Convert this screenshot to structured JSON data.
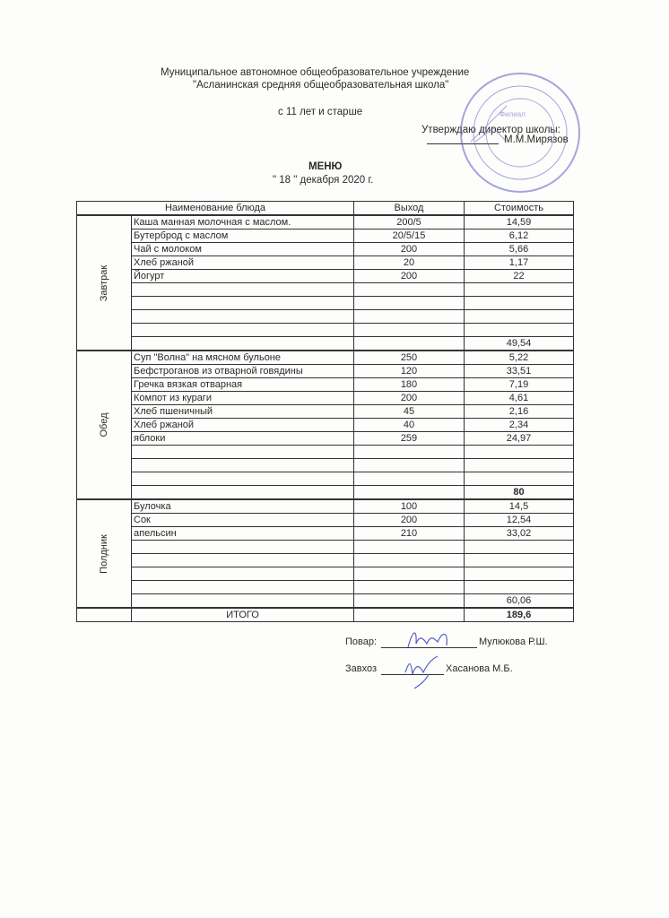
{
  "header": {
    "org_line1": "Муниципальное автономное общеобразовательное учреждение",
    "org_line2": "\"Асланинская средняя общеобразовательная школа\"",
    "age_group": "с 11 лет и старше",
    "approve_label": "Утверждаю директор школы:",
    "director": "М.М.Мирязов",
    "title": "МЕНЮ",
    "date": "\" 18 \" декабря 2020 г."
  },
  "stamp": {
    "text": "Филиал",
    "color": "#5a5fc0"
  },
  "table": {
    "columns": [
      "Наименование блюда",
      "Выход",
      "Стоимость"
    ],
    "sections": [
      {
        "name": "Завтрак",
        "rows": [
          [
            "Каша манная молочная с маслом.",
            "200/5",
            "14,59"
          ],
          [
            "Бутерброд с  маслом",
            "20/5/15",
            "6,12"
          ],
          [
            "Чай с молоком",
            "200",
            "5,66"
          ],
          [
            "Хлеб ржаной",
            "20",
            "1,17"
          ],
          [
            "Йогурт",
            "200",
            "22"
          ],
          [
            "",
            "",
            ""
          ],
          [
            "",
            "",
            ""
          ],
          [
            "",
            "",
            ""
          ],
          [
            "",
            "",
            ""
          ]
        ],
        "subtotal": "49,54",
        "subtotal_bold": false
      },
      {
        "name": "Обед",
        "rows": [
          [
            "Суп \"Волна\" на мясном бульоне",
            "250",
            "5,22"
          ],
          [
            "Бефстроганов из отварной говядины",
            "120",
            "33,51"
          ],
          [
            "Гречка вязкая отварная",
            "180",
            "7,19"
          ],
          [
            "Компот из кураги",
            "200",
            "4,61"
          ],
          [
            "Хлеб пшеничный",
            "45",
            "2,16"
          ],
          [
            "Хлеб ржаной",
            "40",
            "2,34"
          ],
          [
            "яблоки",
            "259",
            "24,97"
          ],
          [
            "",
            "",
            ""
          ],
          [
            "",
            "",
            ""
          ],
          [
            "",
            "",
            ""
          ]
        ],
        "subtotal": "80",
        "subtotal_bold": true
      },
      {
        "name": "Полдник",
        "rows": [
          [
            "Булочка",
            "100",
            "14,5"
          ],
          [
            "Сок",
            "200",
            "12,54"
          ],
          [
            "апельсин",
            "210",
            "33,02"
          ],
          [
            "",
            "",
            ""
          ],
          [
            "",
            "",
            ""
          ],
          [
            "",
            "",
            ""
          ],
          [
            "",
            "",
            ""
          ]
        ],
        "subtotal": "60,06",
        "subtotal_bold": false
      }
    ],
    "total_label": "ИТОГО",
    "total_value": "189,6"
  },
  "signatures": {
    "cook_label": "Повар:",
    "cook_name": "Мулюкова Р.Ш.",
    "supply_label": "Завхоз",
    "supply_name": "Хасанова М.Б.",
    "ink_color": "#5a5fc0"
  }
}
